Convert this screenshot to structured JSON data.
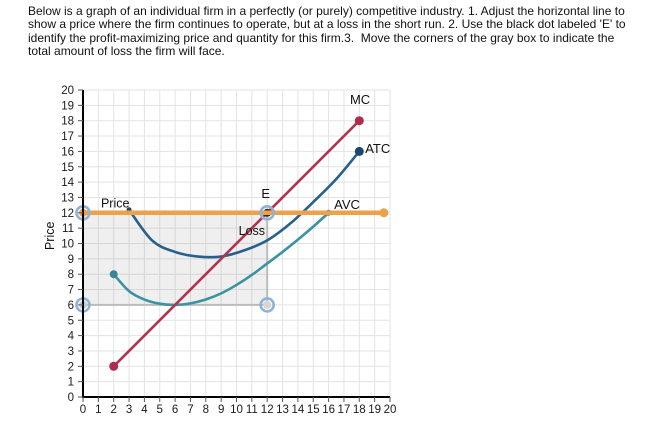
{
  "instructions": {
    "lines": [
      "Below is a graph of an individual firm in a perfectly (or purely) competitive industry. 1. Adjust the horizontal line to",
      "show a price where the firm continues to operate, but at a loss in the short run. 2. Use the black dot labeled 'E' to",
      "identify the profit-maximizing price and quantity for this firm.3.  Move the corners of the gray box to indicate the",
      "total amount of loss the firm will face."
    ]
  },
  "chart_data": {
    "type": "line",
    "title": "",
    "xlabel": "",
    "ylabel": "Price",
    "xlim": [
      0,
      20
    ],
    "ylim": [
      0,
      20
    ],
    "x_ticks": [
      0,
      1,
      2,
      3,
      4,
      5,
      6,
      7,
      8,
      9,
      10,
      11,
      12,
      13,
      14,
      15,
      16,
      17,
      18,
      19,
      20
    ],
    "y_ticks": [
      0,
      1,
      2,
      3,
      4,
      5,
      6,
      7,
      8,
      9,
      10,
      11,
      12,
      13,
      14,
      15,
      16,
      17,
      18,
      19,
      20
    ],
    "grid": true,
    "grid_color": "#e3e3e3",
    "axis_color": "#000000",
    "tick_label_color": "#1a1a1a",
    "series": [
      {
        "name": "ATC",
        "label": "ATC",
        "color": "#27608d",
        "dot_color": "#1a4770",
        "smooth": true,
        "points": [
          [
            3,
            12.2
          ],
          [
            4.5,
            10.2
          ],
          [
            6,
            9.45
          ],
          [
            7.5,
            9.15
          ],
          [
            9,
            9.15
          ],
          [
            10.5,
            9.55
          ],
          [
            12,
            10.2
          ],
          [
            13.5,
            11.3
          ],
          [
            15,
            12.7
          ],
          [
            16.5,
            14.2
          ],
          [
            18,
            16
          ]
        ],
        "start_dot": 2.5,
        "end_dot": 4.5,
        "label_at": [
          19.2,
          15.9
        ],
        "label_anchor": "middle"
      },
      {
        "name": "AVC",
        "label": "AVC",
        "color": "#3b92a1",
        "dot_color": "#338799",
        "smooth": true,
        "points": [
          [
            2,
            8
          ],
          [
            3,
            6.9
          ],
          [
            4,
            6.35
          ],
          [
            5,
            6.08
          ],
          [
            6,
            6.0
          ],
          [
            7,
            6.1
          ],
          [
            8,
            6.35
          ],
          [
            9,
            6.75
          ],
          [
            10,
            7.3
          ],
          [
            11,
            7.95
          ],
          [
            12,
            8.7
          ],
          [
            13,
            9.45
          ],
          [
            14,
            10.25
          ],
          [
            15,
            11.1
          ],
          [
            16,
            12
          ]
        ],
        "start_dot": 4,
        "end_dot": 3,
        "label_at": [
          17.2,
          12.25
        ],
        "label_anchor": "middle"
      },
      {
        "name": "MC",
        "label": "MC",
        "color": "#b23350",
        "dot_color": "#b02c4a",
        "smooth": false,
        "points": [
          [
            2,
            2
          ],
          [
            18,
            18
          ]
        ],
        "start_dot": 4.5,
        "end_dot": 4.5,
        "label_at": [
          18.05,
          19.1
        ],
        "label_anchor": "middle"
      }
    ],
    "price_line": {
      "y": 12,
      "x0": 0,
      "x1": 19.6,
      "color": "#eca24a",
      "width": 4.5,
      "end_dot": 4.5,
      "label": "Price",
      "label_at": [
        1.17,
        12.35
      ]
    },
    "loss_box": {
      "x0": 0,
      "y0": 6,
      "x1": 12,
      "y1": 12,
      "fill": "rgba(128,128,128,0.13)",
      "stroke": "#bcbcbc",
      "label": "Loss",
      "label_at": [
        11,
        10.55
      ]
    },
    "e_marker": {
      "x": 12,
      "y": 12,
      "dot_color": "#2d2d2d",
      "label": "E",
      "label_at": [
        11.9,
        12.95
      ]
    },
    "handle_ring_color": "#8fb2d9",
    "handles": [
      {
        "name": "price-line-left-handle",
        "x": 0,
        "y": 12,
        "inner": "#eca24a"
      },
      {
        "name": "loss-box-bottom-left-handle",
        "x": 0,
        "y": 6,
        "inner": "#c9c9c9"
      },
      {
        "name": "loss-box-bottom-right-handle",
        "x": 12,
        "y": 6,
        "inner": "#d6d6d6"
      },
      {
        "name": "e-dot-handle",
        "x": 12,
        "y": 12,
        "inner": "none"
      }
    ]
  }
}
